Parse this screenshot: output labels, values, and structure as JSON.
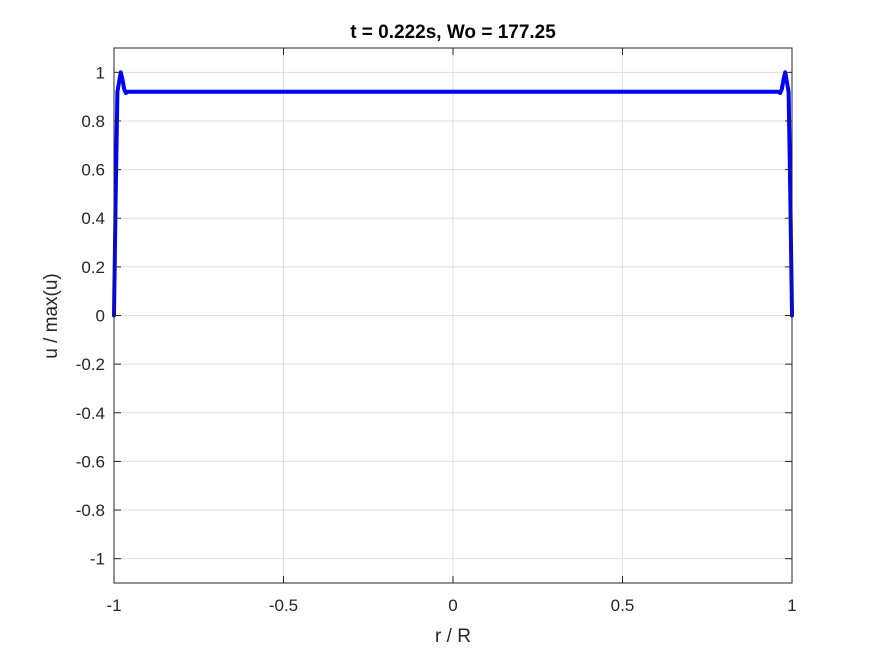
{
  "chart_data": {
    "type": "line",
    "title": "t = 0.222s, Wo = 177.25",
    "xlabel": "r / R",
    "ylabel": "u / max(u)",
    "xlim": [
      -1,
      1
    ],
    "ylim": [
      -1.1,
      1.1
    ],
    "xticks": [
      -1,
      -0.5,
      0,
      0.5,
      1
    ],
    "xtick_labels": [
      "-1",
      "-0.5",
      "0",
      "0.5",
      "1"
    ],
    "yticks": [
      -1,
      -0.8,
      -0.6,
      -0.4,
      -0.2,
      0,
      0.2,
      0.4,
      0.6,
      0.8,
      1
    ],
    "ytick_labels": [
      "-1",
      "-0.8",
      "-0.6",
      "-0.4",
      "-0.2",
      "0",
      "0.2",
      "0.4",
      "0.6",
      "0.8",
      "1"
    ],
    "grid": true,
    "box": true,
    "series": [
      {
        "color": "#0000ff",
        "x": [
          -1.0,
          -0.995,
          -0.99,
          -0.985,
          -0.98,
          -0.975,
          -0.97,
          -0.965,
          -0.96,
          -0.955,
          -0.95,
          -0.9,
          -0.5,
          0,
          0.5,
          0.9,
          0.95,
          0.955,
          0.96,
          0.965,
          0.97,
          0.975,
          0.98,
          0.985,
          0.99,
          0.995,
          1.0
        ],
        "y": [
          0.0,
          0.5,
          0.92,
          0.96,
          1.0,
          0.97,
          0.93,
          0.915,
          0.92,
          0.92,
          0.92,
          0.92,
          0.92,
          0.92,
          0.92,
          0.92,
          0.92,
          0.92,
          0.92,
          0.915,
          0.93,
          0.97,
          1.0,
          0.96,
          0.92,
          0.5,
          0.0
        ]
      }
    ]
  },
  "colors": {
    "line": "#0000ff",
    "grid": "#dfdfdf",
    "axis": "#262626",
    "background": "#ffffff"
  }
}
